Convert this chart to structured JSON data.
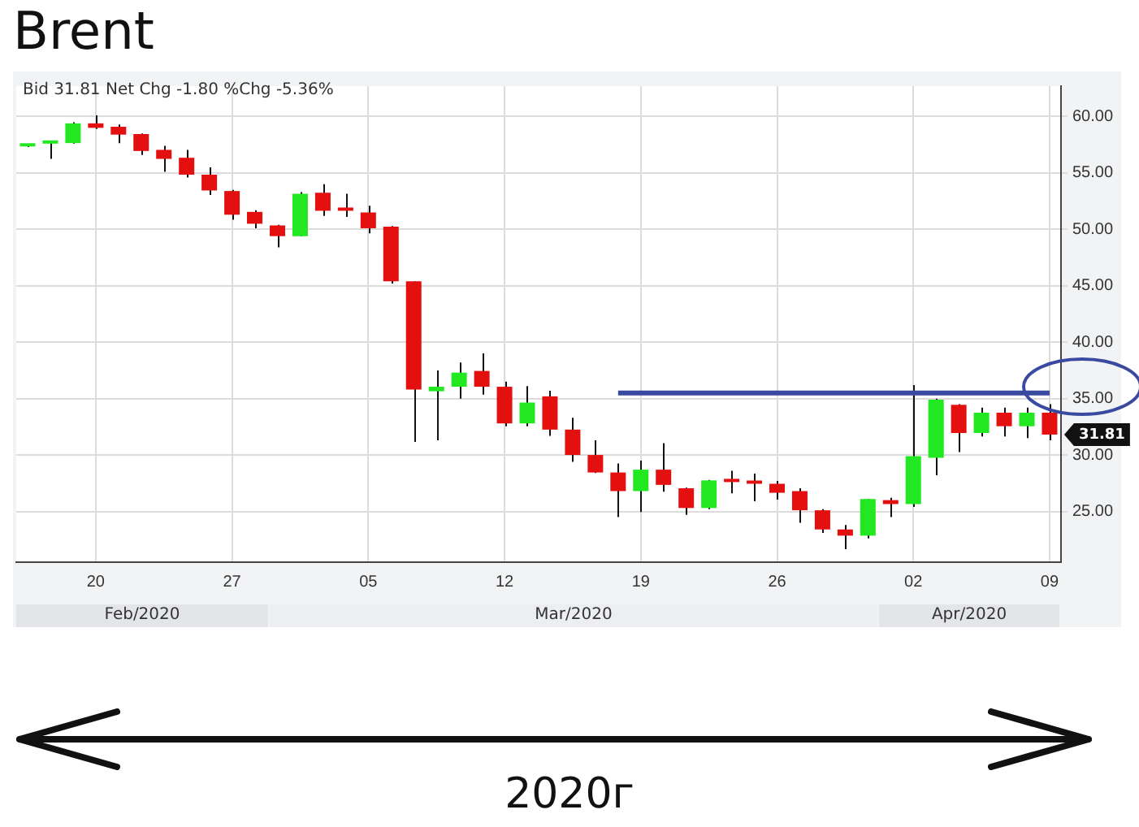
{
  "chart_data": {
    "type": "candlestick",
    "title": "Brent",
    "subtitle": "Bid 31.81 Net Chg -1.80 %Chg -5.36%",
    "categories": [
      null,
      null,
      null,
      "20",
      null,
      null,
      null,
      null,
      null,
      "27",
      null,
      null,
      null,
      null,
      null,
      "05",
      null,
      null,
      null,
      null,
      null,
      "12",
      null,
      null,
      null,
      null,
      null,
      "19",
      null,
      null,
      null,
      null,
      null,
      "26",
      null,
      null,
      null,
      null,
      null,
      "02",
      null,
      null,
      null,
      null,
      null,
      "09"
    ],
    "ohlc": [
      [
        57.35,
        57.5,
        57.3,
        57.45
      ],
      [
        57.6,
        57.7,
        56.25,
        57.7
      ],
      [
        57.65,
        59.5,
        57.6,
        59.4
      ],
      [
        59.4,
        60.1,
        58.9,
        59.0
      ],
      [
        59.1,
        59.3,
        57.65,
        58.4
      ],
      [
        58.45,
        58.5,
        56.6,
        56.95
      ],
      [
        57.05,
        57.4,
        55.1,
        56.25
      ],
      [
        56.35,
        57.05,
        54.6,
        54.85
      ],
      [
        54.85,
        55.5,
        53.05,
        53.45
      ],
      [
        53.4,
        53.5,
        50.85,
        51.3
      ],
      [
        51.55,
        51.7,
        50.1,
        50.5
      ],
      [
        50.35,
        50.4,
        48.4,
        49.4
      ],
      [
        49.4,
        53.3,
        49.4,
        53.15
      ],
      [
        53.25,
        54.0,
        51.2,
        51.65
      ],
      [
        51.8,
        53.15,
        51.1,
        51.65
      ],
      [
        51.5,
        52.1,
        49.65,
        50.1
      ],
      [
        50.25,
        50.3,
        45.2,
        45.4
      ],
      [
        45.4,
        45.4,
        31.15,
        35.8
      ],
      [
        35.65,
        37.5,
        31.3,
        36.05
      ],
      [
        36.05,
        38.2,
        35.0,
        37.3
      ],
      [
        37.45,
        39.0,
        35.35,
        36.05
      ],
      [
        36.05,
        36.5,
        32.55,
        32.8
      ],
      [
        32.8,
        36.1,
        32.55,
        34.65
      ],
      [
        35.2,
        35.7,
        31.7,
        32.25
      ],
      [
        32.25,
        33.3,
        29.4,
        30.0
      ],
      [
        30.0,
        31.3,
        28.4,
        28.45
      ],
      [
        28.45,
        29.25,
        24.5,
        26.8
      ],
      [
        26.8,
        29.5,
        24.95,
        28.7
      ],
      [
        28.7,
        31.05,
        26.75,
        27.35
      ],
      [
        27.05,
        27.1,
        24.7,
        25.3
      ],
      [
        25.3,
        27.8,
        25.2,
        27.75
      ],
      [
        27.75,
        28.6,
        26.6,
        27.6
      ],
      [
        27.55,
        28.35,
        25.9,
        27.45
      ],
      [
        27.45,
        27.7,
        26.05,
        26.65
      ],
      [
        26.8,
        27.05,
        24.0,
        25.1
      ],
      [
        25.1,
        25.2,
        23.1,
        23.4
      ],
      [
        23.4,
        23.8,
        21.65,
        22.85
      ],
      [
        22.85,
        26.1,
        22.6,
        26.1
      ],
      [
        26.0,
        26.2,
        24.5,
        25.65
      ],
      [
        25.65,
        36.2,
        25.4,
        29.9
      ],
      [
        29.75,
        35.0,
        28.2,
        34.9
      ],
      [
        34.45,
        34.5,
        30.25,
        31.95
      ],
      [
        31.95,
        34.2,
        31.65,
        33.75
      ],
      [
        33.75,
        34.2,
        31.65,
        32.55
      ],
      [
        32.55,
        34.2,
        31.5,
        33.75
      ],
      [
        33.75,
        34.5,
        31.3,
        31.81
      ]
    ],
    "colors": [
      "#22e822",
      "#22e822",
      "#22e822",
      "#e41010",
      "#e41010",
      "#e41010",
      "#e41010",
      "#e41010",
      "#e41010",
      "#e41010",
      "#e41010",
      "#e41010",
      "#22e822",
      "#e41010",
      "#e41010",
      "#e41010",
      "#e41010",
      "#e41010",
      "#22e822",
      "#22e822",
      "#e41010",
      "#e41010",
      "#22e822",
      "#e41010",
      "#e41010",
      "#e41010",
      "#e41010",
      "#22e822",
      "#e41010",
      "#e41010",
      "#22e822",
      "#e41010",
      "#e41010",
      "#e41010",
      "#e41010",
      "#e41010",
      "#e41010",
      "#22e822",
      "#e41010",
      "#22e822",
      "#22e822",
      "#e41010",
      "#22e822",
      "#e41010",
      "#22e822",
      "#e41010"
    ],
    "series": [
      {
        "type": "line",
        "color": "#3a4aa0",
        "values": [
          null,
          null,
          null,
          null,
          null,
          null,
          null,
          null,
          null,
          null,
          null,
          null,
          null,
          null,
          null,
          null,
          null,
          null,
          null,
          null,
          null,
          null,
          null,
          null,
          null,
          null,
          35.5,
          35.5,
          35.5,
          35.5,
          35.5,
          35.5,
          35.5,
          35.5,
          35.5,
          35.5,
          35.5,
          35.5,
          35.5,
          35.5,
          35.5,
          35.5,
          35.5,
          35.5,
          35.5,
          35.5
        ]
      }
    ],
    "ylim": [
      20.5,
      62.7
    ],
    "yticks": [
      {
        "value": 25,
        "label": "25.00"
      },
      {
        "value": 30,
        "label": "30.00"
      },
      {
        "value": 35,
        "label": "35.00"
      },
      {
        "value": 40,
        "label": "40.00"
      },
      {
        "value": 45,
        "label": "45.00"
      },
      {
        "value": 50,
        "label": "50.00"
      },
      {
        "value": 55,
        "label": "55.00"
      },
      {
        "value": 60,
        "label": "60.00"
      }
    ],
    "grid": true,
    "legend": false,
    "annotations": [
      "31.81",
      "Feb/2020",
      "Mar/2020",
      "Apr/2020",
      "2020г"
    ]
  }
}
